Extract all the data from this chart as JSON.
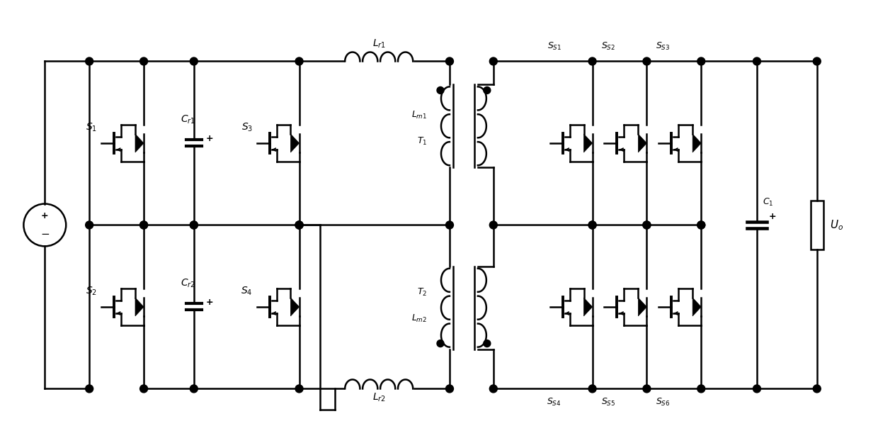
{
  "bg_color": "#ffffff",
  "line_color": "#000000",
  "lw": 1.8,
  "figsize": [
    12.4,
    6.01
  ],
  "dpi": 100,
  "xlim": [
    0,
    12.4
  ],
  "ylim": [
    0,
    6.01
  ]
}
